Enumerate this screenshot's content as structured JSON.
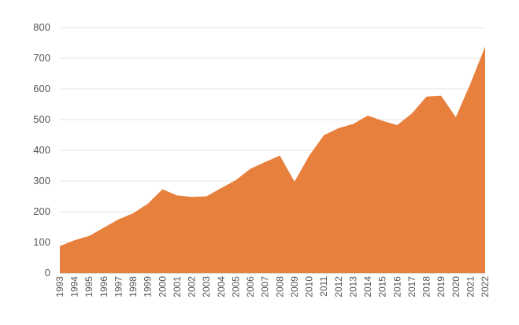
{
  "chart_data": {
    "type": "area",
    "title": "",
    "xlabel": "",
    "ylabel": "",
    "x": [
      "1993",
      "1994",
      "1995",
      "1996",
      "1997",
      "1998",
      "1999",
      "2000",
      "2001",
      "2002",
      "2003",
      "2004",
      "2005",
      "2006",
      "2007",
      "2008",
      "2009",
      "2010",
      "2011",
      "2012",
      "2013",
      "2014",
      "2015",
      "2016",
      "2017",
      "2018",
      "2019",
      "2020",
      "2021",
      "2022"
    ],
    "values": [
      88,
      107,
      121,
      148,
      175,
      195,
      226,
      273,
      253,
      248,
      250,
      277,
      303,
      340,
      362,
      383,
      298,
      382,
      449,
      472,
      486,
      513,
      496,
      482,
      520,
      575,
      578,
      508,
      618,
      738
    ],
    "ylim": [
      0,
      800
    ],
    "yticks": [
      0,
      100,
      200,
      300,
      400,
      500,
      600,
      700,
      800
    ],
    "grid": true,
    "legend": "none",
    "colors": {
      "area": "#E8803D",
      "grid": "#e6e6e6",
      "text": "#555555"
    }
  }
}
